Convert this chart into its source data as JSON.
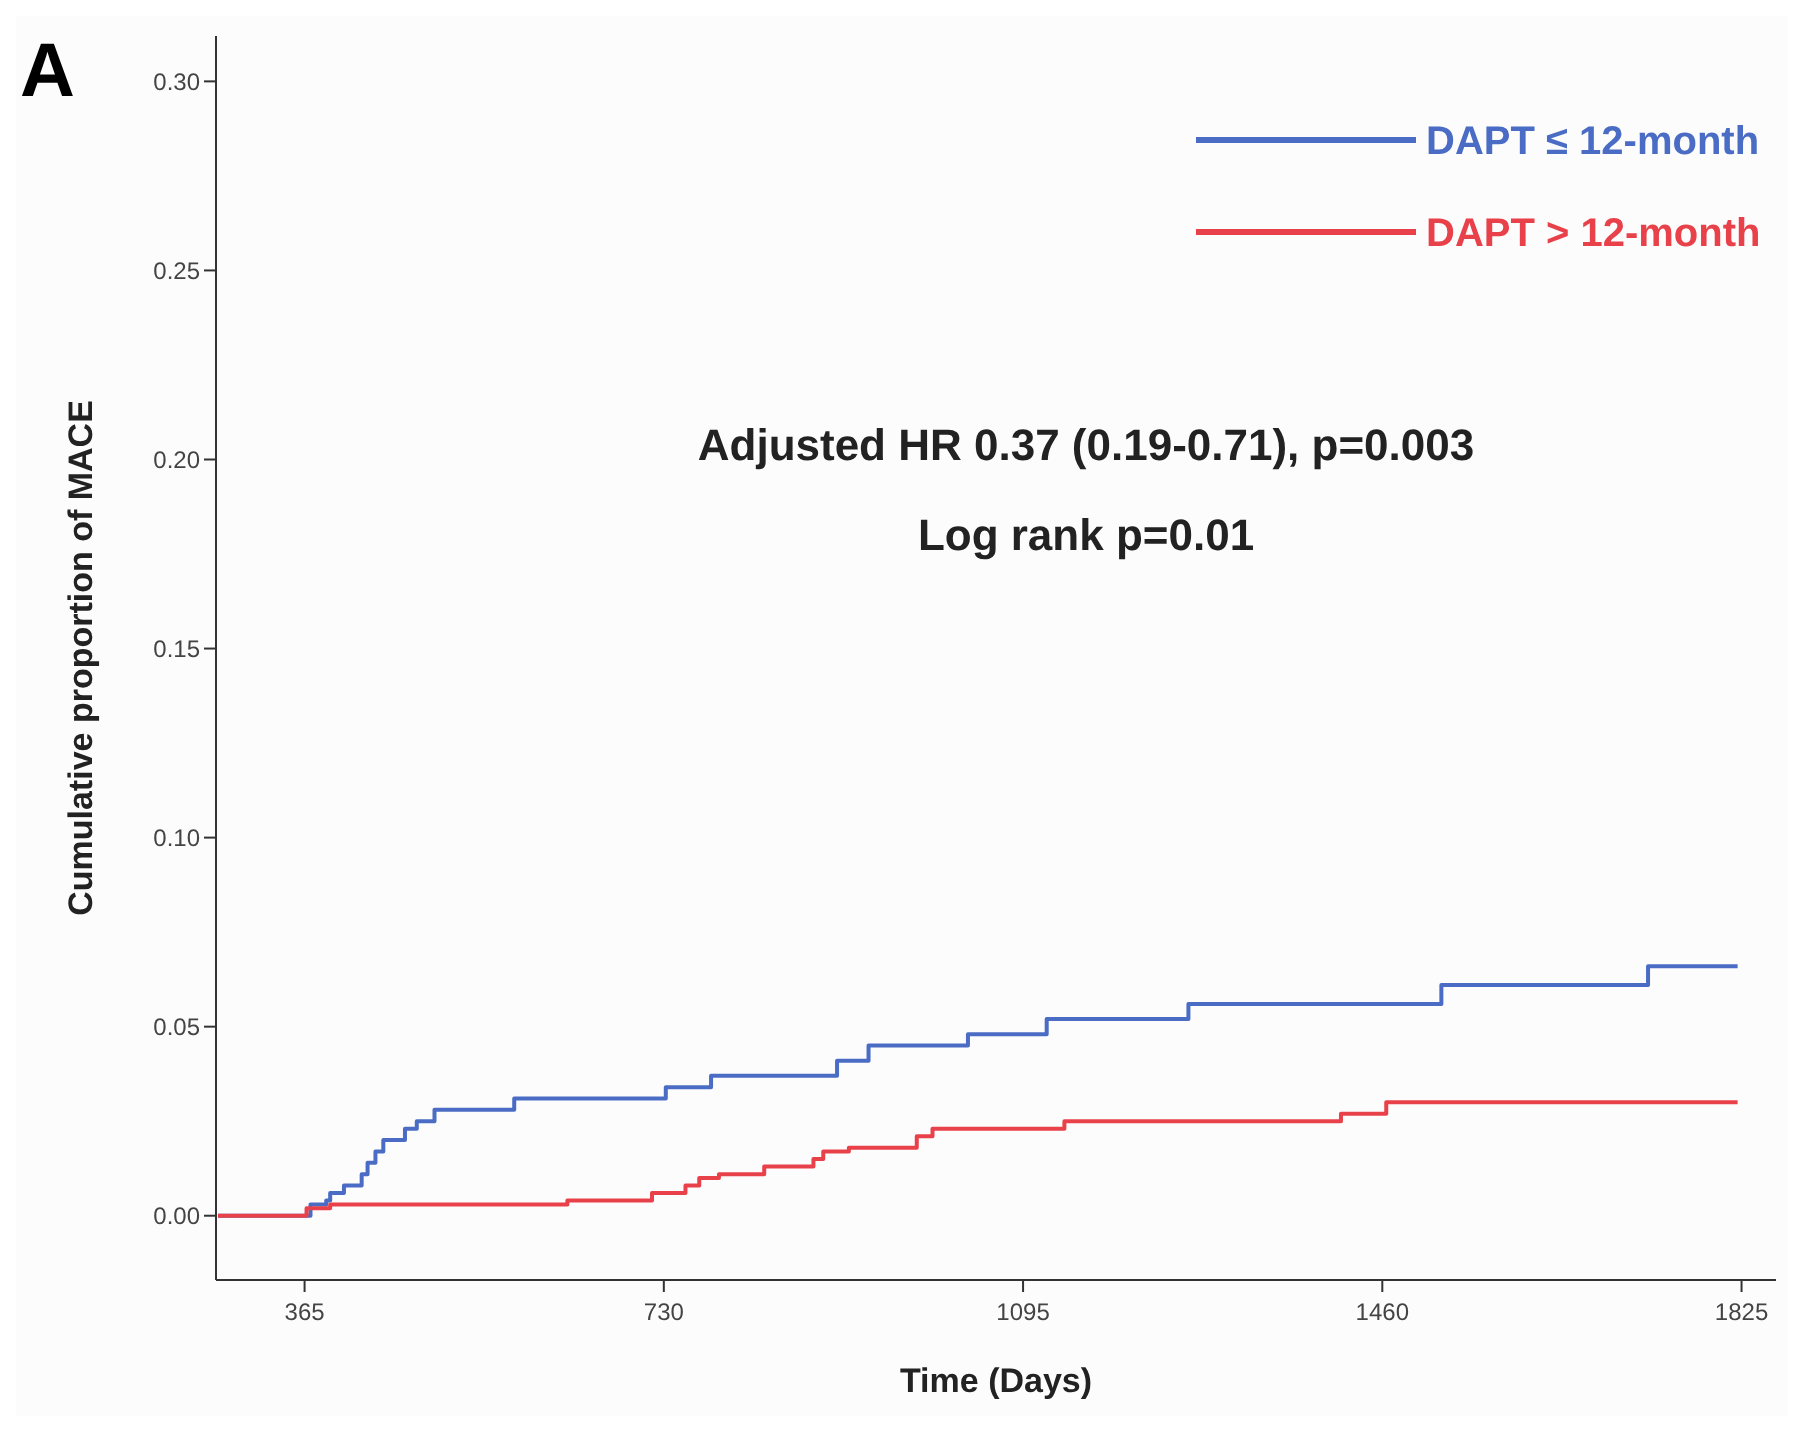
{
  "chart_data": {
    "type": "step",
    "xlabel": "Time (Days)",
    "ylabel": "Cumulative proportion of MACE",
    "annotations": [
      "A",
      "Adjusted HR 0.37 (0.19-0.71), p=0.003",
      "Log rank p=0.01"
    ],
    "xlim": [
      275,
      1860
    ],
    "xticks": [
      365,
      730,
      1095,
      1460,
      1825
    ],
    "ylim": [
      -0.017,
      0.312
    ],
    "yticks": [
      {
        "value": 0,
        "label": "0.00"
      },
      {
        "value": 0.05,
        "label": "0.05"
      },
      {
        "value": 0.1,
        "label": "0.10"
      },
      {
        "value": 0.15,
        "label": "0.15"
      },
      {
        "value": 0.2,
        "label": "0.20"
      },
      {
        "value": 0.25,
        "label": "0.25"
      },
      {
        "value": 0.3,
        "label": "0.30"
      }
    ],
    "grid": false,
    "legend": "top right",
    "marker": "none",
    "line_style": "solid",
    "series": [
      {
        "name": "DAPT ≤ 12-month",
        "color": "#4a6cc4",
        "x": [
          277,
          371,
          387,
          391,
          405,
          423,
          429,
          437,
          445,
          467,
          479,
          497,
          578,
          732,
          778,
          906,
          938,
          1039,
          1119,
          1263,
          1520,
          1730,
          1821
        ],
        "values": [
          0,
          0.003,
          0.004,
          0.006,
          0.008,
          0.011,
          0.014,
          0.017,
          0.02,
          0.023,
          0.025,
          0.028,
          0.031,
          0.034,
          0.037,
          0.041,
          0.045,
          0.048,
          0.052,
          0.056,
          0.061,
          0.066,
          0.066
        ]
      },
      {
        "name": "DAPT > 12-month",
        "color": "#e8414a",
        "x": [
          277,
          367,
          391,
          632,
          718,
          752,
          766,
          786,
          832,
          882,
          892,
          918,
          987,
          1003,
          1137,
          1418,
          1464,
          1821
        ],
        "values": [
          0,
          0.002,
          0.003,
          0.004,
          0.006,
          0.008,
          0.01,
          0.011,
          0.013,
          0.015,
          0.017,
          0.018,
          0.021,
          0.023,
          0.025,
          0.027,
          0.03,
          0.03
        ]
      }
    ]
  }
}
